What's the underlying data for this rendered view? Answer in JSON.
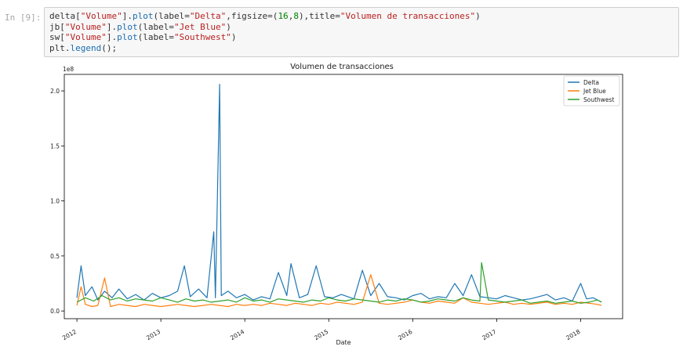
{
  "cell": {
    "prompt": "In [9]:",
    "code_lines": [
      [
        {
          "t": "delta["
        },
        {
          "t": "\"Volume\"",
          "c": "str"
        },
        {
          "t": "]."
        },
        {
          "t": "plot",
          "c": "attr"
        },
        {
          "t": "(label="
        },
        {
          "t": "\"Delta\"",
          "c": "str"
        },
        {
          "t": ",figsize=("
        },
        {
          "t": "16",
          "c": "num"
        },
        {
          "t": ","
        },
        {
          "t": "8",
          "c": "num"
        },
        {
          "t": "),title="
        },
        {
          "t": "\"Volumen de transacciones\"",
          "c": "str"
        },
        {
          "t": ")"
        }
      ],
      [
        {
          "t": "jb["
        },
        {
          "t": "\"Volume\"",
          "c": "str"
        },
        {
          "t": "]."
        },
        {
          "t": "plot",
          "c": "attr"
        },
        {
          "t": "(label="
        },
        {
          "t": "\"Jet Blue\"",
          "c": "str"
        },
        {
          "t": ")"
        }
      ],
      [
        {
          "t": "sw["
        },
        {
          "t": "\"Volume\"",
          "c": "str"
        },
        {
          "t": "]."
        },
        {
          "t": "plot",
          "c": "attr"
        },
        {
          "t": "(label="
        },
        {
          "t": "\"Southwest\"",
          "c": "str"
        },
        {
          "t": ")"
        }
      ],
      [
        {
          "t": "plt."
        },
        {
          "t": "legend",
          "c": "attr"
        },
        {
          "t": "();"
        }
      ]
    ]
  },
  "chart_data": {
    "type": "line",
    "title": "Volumen de transacciones",
    "xlabel": "Date",
    "ylabel": "",
    "offset_label": "1e8",
    "xlim": [
      2011.85,
      2018.5
    ],
    "ylim": [
      -0.07,
      2.15
    ],
    "x_ticks": [
      2012,
      2013,
      2014,
      2015,
      2016,
      2017,
      2018
    ],
    "x_tick_labels": [
      "2012",
      "2013",
      "2014",
      "2015",
      "2016",
      "2017",
      "2018"
    ],
    "y_ticks": [
      0.0,
      0.5,
      1.0,
      1.5,
      2.0
    ],
    "y_tick_labels": [
      "0.0",
      "0.5",
      "1.0",
      "1.5",
      "2.0"
    ],
    "grid": false,
    "legend_position": "top-right",
    "series": [
      {
        "name": "Delta",
        "color": "#1f77b4",
        "x": [
          2012.0,
          2012.05,
          2012.1,
          2012.18,
          2012.25,
          2012.33,
          2012.42,
          2012.5,
          2012.6,
          2012.7,
          2012.8,
          2012.9,
          2013.0,
          2013.1,
          2013.2,
          2013.28,
          2013.35,
          2013.45,
          2013.55,
          2013.63,
          2013.65,
          2013.7,
          2013.72,
          2013.8,
          2013.9,
          2014.0,
          2014.1,
          2014.2,
          2014.3,
          2014.4,
          2014.5,
          2014.55,
          2014.65,
          2014.75,
          2014.85,
          2014.95,
          2015.05,
          2015.15,
          2015.3,
          2015.4,
          2015.5,
          2015.6,
          2015.7,
          2015.8,
          2015.9,
          2016.0,
          2016.1,
          2016.2,
          2016.3,
          2016.4,
          2016.5,
          2016.6,
          2016.7,
          2016.8,
          2016.9,
          2017.0,
          2017.1,
          2017.2,
          2017.3,
          2017.4,
          2017.5,
          2017.6,
          2017.7,
          2017.8,
          2017.9,
          2018.0,
          2018.07,
          2018.15,
          2018.25
        ],
        "values": [
          0.12,
          0.41,
          0.14,
          0.22,
          0.1,
          0.18,
          0.12,
          0.2,
          0.11,
          0.15,
          0.1,
          0.16,
          0.12,
          0.14,
          0.18,
          0.41,
          0.13,
          0.2,
          0.12,
          0.72,
          0.12,
          2.06,
          0.14,
          0.18,
          0.12,
          0.15,
          0.1,
          0.13,
          0.11,
          0.35,
          0.14,
          0.43,
          0.12,
          0.15,
          0.41,
          0.13,
          0.12,
          0.15,
          0.11,
          0.37,
          0.14,
          0.25,
          0.13,
          0.12,
          0.1,
          0.14,
          0.16,
          0.11,
          0.13,
          0.12,
          0.25,
          0.14,
          0.33,
          0.13,
          0.12,
          0.11,
          0.14,
          0.12,
          0.1,
          0.11,
          0.13,
          0.15,
          0.1,
          0.12,
          0.09,
          0.25,
          0.11,
          0.12,
          0.08
        ]
      },
      {
        "name": "Jet Blue",
        "color": "#ff7f0e",
        "x": [
          2012.0,
          2012.05,
          2012.1,
          2012.18,
          2012.25,
          2012.33,
          2012.4,
          2012.5,
          2012.6,
          2012.7,
          2012.8,
          2012.9,
          2013.0,
          2013.1,
          2013.2,
          2013.3,
          2013.4,
          2013.5,
          2013.6,
          2013.7,
          2013.8,
          2013.9,
          2014.0,
          2014.1,
          2014.2,
          2014.3,
          2014.4,
          2014.5,
          2014.6,
          2014.7,
          2014.8,
          2014.9,
          2015.0,
          2015.1,
          2015.2,
          2015.3,
          2015.4,
          2015.5,
          2015.6,
          2015.7,
          2015.8,
          2015.9,
          2016.0,
          2016.1,
          2016.2,
          2016.3,
          2016.4,
          2016.5,
          2016.6,
          2016.7,
          2016.8,
          2016.9,
          2017.0,
          2017.1,
          2017.2,
          2017.3,
          2017.4,
          2017.5,
          2017.6,
          2017.7,
          2017.8,
          2017.9,
          2018.0,
          2018.1,
          2018.2,
          2018.25
        ],
        "values": [
          0.05,
          0.22,
          0.06,
          0.04,
          0.05,
          0.3,
          0.04,
          0.06,
          0.05,
          0.04,
          0.06,
          0.05,
          0.04,
          0.05,
          0.06,
          0.05,
          0.04,
          0.05,
          0.06,
          0.05,
          0.04,
          0.06,
          0.05,
          0.06,
          0.05,
          0.07,
          0.06,
          0.05,
          0.07,
          0.06,
          0.05,
          0.07,
          0.06,
          0.08,
          0.07,
          0.06,
          0.08,
          0.33,
          0.07,
          0.06,
          0.07,
          0.08,
          0.1,
          0.08,
          0.07,
          0.09,
          0.08,
          0.07,
          0.12,
          0.08,
          0.07,
          0.06,
          0.07,
          0.08,
          0.06,
          0.07,
          0.06,
          0.07,
          0.08,
          0.06,
          0.07,
          0.06,
          0.08,
          0.07,
          0.06,
          0.05
        ]
      },
      {
        "name": "Southwest",
        "color": "#2ca02c",
        "x": [
          2012.0,
          2012.05,
          2012.1,
          2012.2,
          2012.3,
          2012.4,
          2012.5,
          2012.6,
          2012.7,
          2012.8,
          2012.9,
          2013.0,
          2013.1,
          2013.2,
          2013.3,
          2013.4,
          2013.5,
          2013.6,
          2013.7,
          2013.8,
          2013.9,
          2014.0,
          2014.1,
          2014.2,
          2014.3,
          2014.4,
          2014.5,
          2014.6,
          2014.7,
          2014.8,
          2014.9,
          2015.0,
          2015.1,
          2015.2,
          2015.3,
          2015.4,
          2015.5,
          2015.6,
          2015.7,
          2015.8,
          2015.9,
          2016.0,
          2016.1,
          2016.2,
          2016.3,
          2016.4,
          2016.5,
          2016.6,
          2016.7,
          2016.8,
          2016.82,
          2016.9,
          2017.0,
          2017.1,
          2017.2,
          2017.3,
          2017.4,
          2017.5,
          2017.6,
          2017.7,
          2017.8,
          2017.9,
          2018.0,
          2018.1,
          2018.2,
          2018.25
        ],
        "values": [
          0.08,
          0.1,
          0.12,
          0.09,
          0.14,
          0.1,
          0.12,
          0.09,
          0.11,
          0.1,
          0.09,
          0.12,
          0.1,
          0.08,
          0.11,
          0.09,
          0.1,
          0.08,
          0.09,
          0.1,
          0.08,
          0.12,
          0.09,
          0.1,
          0.08,
          0.11,
          0.1,
          0.09,
          0.08,
          0.1,
          0.09,
          0.12,
          0.1,
          0.09,
          0.11,
          0.1,
          0.09,
          0.08,
          0.1,
          0.09,
          0.11,
          0.1,
          0.08,
          0.09,
          0.11,
          0.1,
          0.09,
          0.12,
          0.1,
          0.09,
          0.44,
          0.1,
          0.09,
          0.08,
          0.09,
          0.1,
          0.07,
          0.08,
          0.09,
          0.07,
          0.08,
          0.09,
          0.07,
          0.08,
          0.1,
          0.08
        ]
      }
    ]
  }
}
